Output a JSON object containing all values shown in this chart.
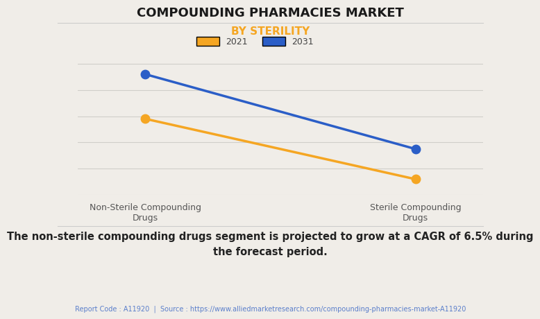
{
  "title": "COMPOUNDING PHARMACIES MARKET",
  "subtitle": "BY STERILITY",
  "categories": [
    "Non-Sterile Compounding\nDrugs",
    "Sterile Compounding\nDrugs"
  ],
  "series": [
    {
      "label": "2021",
      "color": "#F5A623",
      "values": [
        0.58,
        0.12
      ]
    },
    {
      "label": "2031",
      "color": "#2B5EC7",
      "values": [
        0.92,
        0.35
      ]
    }
  ],
  "ylim": [
    0,
    1.05
  ],
  "background_color": "#f0ede8",
  "plot_bg_color": "#f0ede8",
  "title_fontsize": 13,
  "subtitle_fontsize": 11,
  "subtitle_color": "#F5A623",
  "legend_colors": {
    "2021": "#F5A623",
    "2031": "#2B5EC7"
  },
  "footer_text": "The non-sterile compounding drugs segment is projected to grow at a CAGR of 6.5% during\nthe forecast period.",
  "source_text": "Report Code : A11920  |  Source : https://www.alliedmarketresearch.com/compounding-pharmacies-market-A11920",
  "footer_color": "#222222",
  "source_color": "#5b7fcb",
  "marker_size": 9,
  "line_width": 2.5
}
